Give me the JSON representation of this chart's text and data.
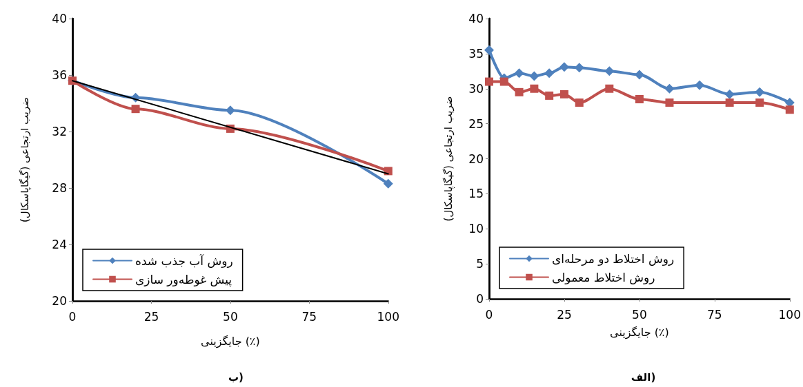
{
  "chart_data": [
    {
      "type": "line",
      "title": "ب)",
      "xlabel": "جایگزینی (٪)",
      "ylabel": "ضریب ارتجاعی (گیگاپاسکال)",
      "xlim": [
        0,
        100
      ],
      "xticks": [
        0,
        25,
        50,
        75,
        100
      ],
      "ylim": [
        20,
        40
      ],
      "yticks": [
        20,
        24,
        28,
        32,
        36,
        40
      ],
      "grid": false,
      "legend": "bottom left",
      "line_style": "solid",
      "series": [
        {
          "name": "روش آب جذب شده",
          "color": "#4f81bd",
          "marker": "diamond",
          "x": [
            0,
            20,
            50,
            100
          ],
          "values": [
            35.6,
            34.4,
            33.5,
            28.3
          ]
        },
        {
          "name": "پیش غوطه‌ور سازی",
          "color": "#c0504d",
          "marker": "square",
          "x": [
            0,
            20,
            50,
            100
          ],
          "values": [
            35.6,
            33.6,
            32.2,
            29.2
          ]
        },
        {
          "color": "#000000",
          "marker": "none",
          "x": [
            0,
            100
          ],
          "values": [
            35.6,
            29.0
          ]
        }
      ]
    },
    {
      "type": "line",
      "title": "الف)",
      "xlabel": "جایگزینی (٪)",
      "ylabel": "ضریب ارتجاعی (گیگاپاسکال)",
      "xlim": [
        0,
        100
      ],
      "xticks": [
        0,
        25,
        50,
        75,
        100
      ],
      "ylim": [
        0,
        40
      ],
      "yticks": [
        0,
        5,
        10,
        15,
        20,
        25,
        30,
        35,
        40
      ],
      "grid": false,
      "legend": "bottom left",
      "line_style": "solid",
      "series": [
        {
          "name": "روش اختلاط دو مرحله‌ای",
          "color": "#4f81bd",
          "marker": "diamond",
          "x": [
            0,
            5,
            10,
            15,
            20,
            25,
            30,
            40,
            50,
            60,
            70,
            80,
            90,
            100
          ],
          "values": [
            35.5,
            31.5,
            32.2,
            31.8,
            32.2,
            33.1,
            33.0,
            32.5,
            32.0,
            30.0,
            30.5,
            29.2,
            29.5,
            28.0
          ]
        },
        {
          "name": "روش اختلاط معمولی",
          "color": "#c0504d",
          "marker": "square",
          "x": [
            0,
            5,
            10,
            15,
            20,
            25,
            30,
            40,
            50,
            60,
            80,
            90,
            100
          ],
          "values": [
            31.0,
            31.0,
            29.5,
            30.0,
            29.0,
            29.2,
            28.0,
            30.0,
            28.5,
            28.0,
            28.0,
            28.0,
            27.0
          ]
        }
      ]
    }
  ]
}
